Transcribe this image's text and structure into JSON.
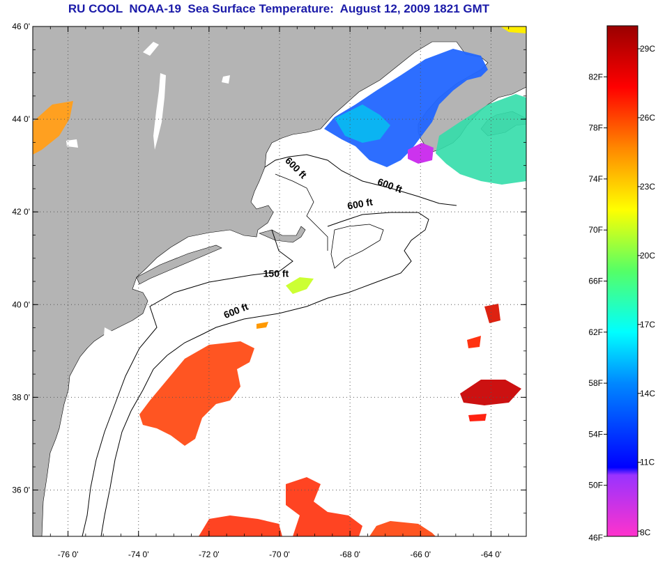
{
  "title": "RU COOL  NOAA-19  Sea Surface Temperature:  August 12, 2009 1821 GMT",
  "map": {
    "lon_range": [
      -77,
      -63
    ],
    "lat_range": [
      35,
      46
    ],
    "lat_ticks": [
      {
        "value": 46,
        "label": "46 0'"
      },
      {
        "value": 44,
        "label": "44 0'"
      },
      {
        "value": 42,
        "label": "42 0'"
      },
      {
        "value": 40,
        "label": "40 0'"
      },
      {
        "value": 38,
        "label": "38 0'"
      },
      {
        "value": 36,
        "label": "36 0'"
      }
    ],
    "lon_ticks": [
      {
        "value": -76,
        "label": "-76 0'"
      },
      {
        "value": -74,
        "label": "-74 0'"
      },
      {
        "value": -72,
        "label": "-72 0'"
      },
      {
        "value": -70,
        "label": "-70 0'"
      },
      {
        "value": -68,
        "label": "-68 0'"
      },
      {
        "value": -66,
        "label": "-66 0'"
      },
      {
        "value": -64,
        "label": "-64 0'"
      }
    ],
    "contour_labels": [
      {
        "text": "600 ft",
        "lon": -69.6,
        "lat": 42.9
      },
      {
        "text": "600 ft",
        "lon": -66.9,
        "lat": 42.5
      },
      {
        "text": "600 ft",
        "lon": -67.7,
        "lat": 42.1
      },
      {
        "text": "150 ft",
        "lon": -70.1,
        "lat": 40.6
      },
      {
        "text": "600 ft",
        "lon": -71.2,
        "lat": 39.8
      }
    ],
    "colors": {
      "land": "#b4b4b4",
      "ocean": "#ffffff",
      "grid": "#555555"
    }
  },
  "colorbar": {
    "f_labels": [
      {
        "value": 82,
        "label": "82F"
      },
      {
        "value": 78,
        "label": "78F"
      },
      {
        "value": 74,
        "label": "74F"
      },
      {
        "value": 70,
        "label": "70F"
      },
      {
        "value": 66,
        "label": "66F"
      },
      {
        "value": 62,
        "label": "62F"
      },
      {
        "value": 58,
        "label": "58F"
      },
      {
        "value": 54,
        "label": "54F"
      },
      {
        "value": 50,
        "label": "50F"
      },
      {
        "value": 46,
        "label": "46F"
      }
    ],
    "c_labels": [
      {
        "value": 29,
        "label": "29C"
      },
      {
        "value": 26,
        "label": "26C"
      },
      {
        "value": 23,
        "label": "23C"
      },
      {
        "value": 20,
        "label": "20C"
      },
      {
        "value": 17,
        "label": "17C"
      },
      {
        "value": 14,
        "label": "14C"
      },
      {
        "value": 11,
        "label": "11C"
      },
      {
        "value": 8,
        "label": "8C"
      }
    ]
  }
}
